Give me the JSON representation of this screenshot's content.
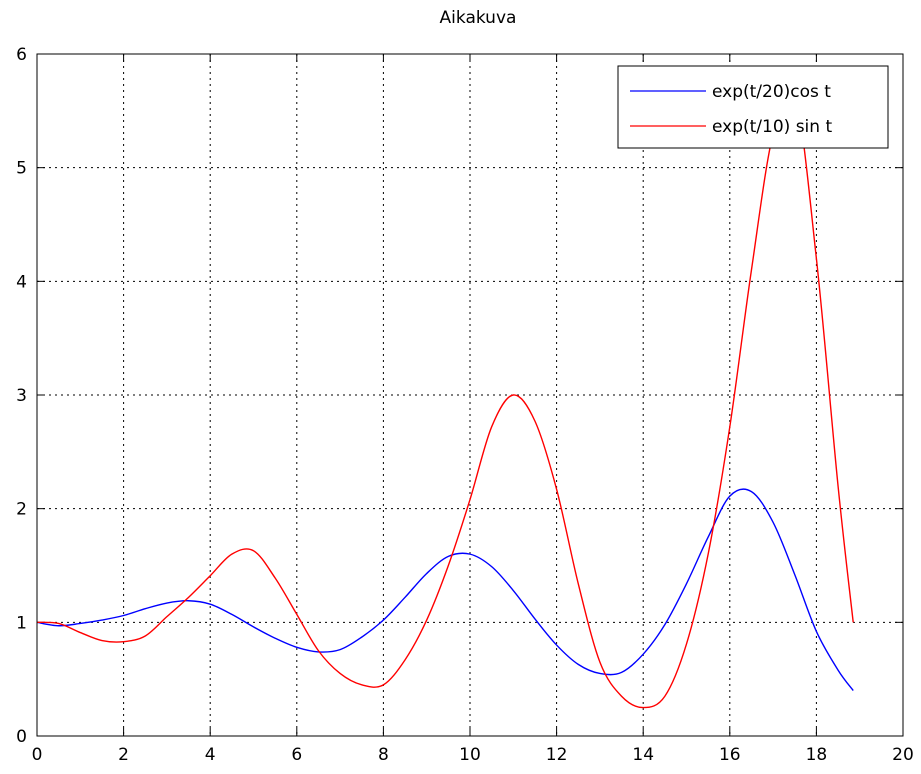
{
  "chart_data": {
    "type": "line",
    "title": "Aikakuva",
    "xlabel": "",
    "ylabel": "",
    "xlim": [
      0,
      20
    ],
    "ylim": [
      0,
      6
    ],
    "xticks": [
      0,
      2,
      4,
      6,
      8,
      10,
      12,
      14,
      16,
      18,
      20
    ],
    "yticks": [
      0,
      1,
      2,
      3,
      4,
      5,
      6
    ],
    "xtick_labels": [
      "0",
      "2",
      "4",
      "6",
      "8",
      "10",
      "12",
      "14",
      "16",
      "18",
      "20"
    ],
    "ytick_labels": [
      "0",
      "1",
      "2",
      "3",
      "4",
      "5",
      "6"
    ],
    "grid": true,
    "legend_position": "top-right",
    "series": [
      {
        "name": "exp(t/20)cos t",
        "color": "#0000ff",
        "x": [
          0.0,
          0.5,
          1.0,
          1.5,
          2.0,
          2.5,
          3.0,
          3.5,
          4.0,
          4.5,
          5.0,
          5.5,
          6.0,
          6.5,
          7.0,
          7.5,
          8.0,
          8.5,
          9.0,
          9.5,
          10.0,
          10.5,
          11.0,
          11.5,
          12.0,
          12.5,
          13.0,
          13.5,
          14.0,
          14.5,
          15.0,
          15.5,
          16.0,
          16.5,
          17.0,
          17.5,
          18.0,
          18.5,
          18.85
        ],
        "y": [
          1.0,
          0.97,
          0.99,
          1.02,
          1.06,
          1.12,
          1.17,
          1.19,
          1.16,
          1.07,
          0.96,
          0.86,
          0.78,
          0.74,
          0.76,
          0.87,
          1.02,
          1.22,
          1.43,
          1.58,
          1.6,
          1.49,
          1.28,
          1.03,
          0.8,
          0.63,
          0.55,
          0.56,
          0.72,
          0.98,
          1.34,
          1.75,
          2.11,
          2.15,
          1.88,
          1.42,
          0.92,
          0.58,
          0.4
        ]
      },
      {
        "name": "exp(t/10) sin t",
        "color": "#ff0000",
        "x": [
          0.0,
          0.5,
          1.0,
          1.5,
          2.0,
          2.5,
          3.0,
          3.5,
          4.0,
          4.5,
          5.0,
          5.5,
          6.0,
          6.5,
          7.0,
          7.5,
          8.0,
          8.5,
          9.0,
          9.5,
          10.0,
          10.5,
          11.0,
          11.5,
          12.0,
          12.5,
          13.0,
          13.5,
          14.0,
          14.5,
          15.0,
          15.5,
          16.0,
          16.5,
          17.0,
          17.5,
          18.0,
          18.5,
          18.85
        ],
        "y": [
          1.0,
          0.99,
          0.91,
          0.84,
          0.83,
          0.88,
          1.05,
          1.22,
          1.41,
          1.6,
          1.63,
          1.39,
          1.07,
          0.75,
          0.55,
          0.45,
          0.45,
          0.67,
          1.02,
          1.5,
          2.08,
          2.72,
          3.0,
          2.77,
          2.17,
          1.34,
          0.65,
          0.35,
          0.25,
          0.35,
          0.81,
          1.6,
          2.72,
          4.1,
          5.3,
          5.65,
          4.2,
          2.2,
          1.0
        ]
      }
    ]
  }
}
